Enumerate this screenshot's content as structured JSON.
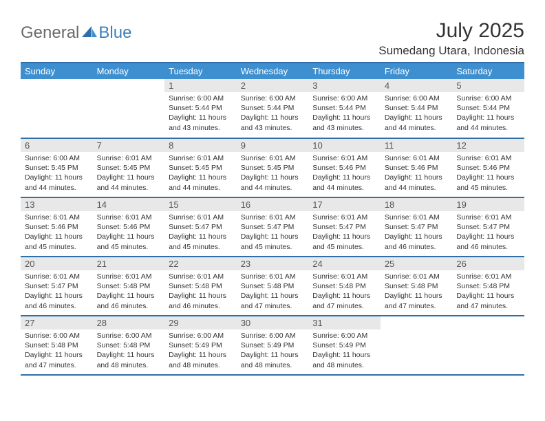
{
  "logo": {
    "text1": "General",
    "text2": "Blue"
  },
  "title": "July 2025",
  "location": "Sumedang Utara, Indonesia",
  "colors": {
    "header_bg": "#3d8fcf",
    "header_text": "#ffffff",
    "divider": "#2f6fa8",
    "daynum_bg": "#e8e8e8",
    "text": "#333333",
    "logo_gray": "#6a6a6a",
    "logo_blue": "#3a7fbf"
  },
  "day_headers": [
    "Sunday",
    "Monday",
    "Tuesday",
    "Wednesday",
    "Thursday",
    "Friday",
    "Saturday"
  ],
  "weeks": [
    [
      {
        "num": "",
        "sunrise": "",
        "sunset": "",
        "daylight": ""
      },
      {
        "num": "",
        "sunrise": "",
        "sunset": "",
        "daylight": ""
      },
      {
        "num": "1",
        "sunrise": "Sunrise: 6:00 AM",
        "sunset": "Sunset: 5:44 PM",
        "daylight": "Daylight: 11 hours and 43 minutes."
      },
      {
        "num": "2",
        "sunrise": "Sunrise: 6:00 AM",
        "sunset": "Sunset: 5:44 PM",
        "daylight": "Daylight: 11 hours and 43 minutes."
      },
      {
        "num": "3",
        "sunrise": "Sunrise: 6:00 AM",
        "sunset": "Sunset: 5:44 PM",
        "daylight": "Daylight: 11 hours and 43 minutes."
      },
      {
        "num": "4",
        "sunrise": "Sunrise: 6:00 AM",
        "sunset": "Sunset: 5:44 PM",
        "daylight": "Daylight: 11 hours and 44 minutes."
      },
      {
        "num": "5",
        "sunrise": "Sunrise: 6:00 AM",
        "sunset": "Sunset: 5:44 PM",
        "daylight": "Daylight: 11 hours and 44 minutes."
      }
    ],
    [
      {
        "num": "6",
        "sunrise": "Sunrise: 6:00 AM",
        "sunset": "Sunset: 5:45 PM",
        "daylight": "Daylight: 11 hours and 44 minutes."
      },
      {
        "num": "7",
        "sunrise": "Sunrise: 6:01 AM",
        "sunset": "Sunset: 5:45 PM",
        "daylight": "Daylight: 11 hours and 44 minutes."
      },
      {
        "num": "8",
        "sunrise": "Sunrise: 6:01 AM",
        "sunset": "Sunset: 5:45 PM",
        "daylight": "Daylight: 11 hours and 44 minutes."
      },
      {
        "num": "9",
        "sunrise": "Sunrise: 6:01 AM",
        "sunset": "Sunset: 5:45 PM",
        "daylight": "Daylight: 11 hours and 44 minutes."
      },
      {
        "num": "10",
        "sunrise": "Sunrise: 6:01 AM",
        "sunset": "Sunset: 5:46 PM",
        "daylight": "Daylight: 11 hours and 44 minutes."
      },
      {
        "num": "11",
        "sunrise": "Sunrise: 6:01 AM",
        "sunset": "Sunset: 5:46 PM",
        "daylight": "Daylight: 11 hours and 44 minutes."
      },
      {
        "num": "12",
        "sunrise": "Sunrise: 6:01 AM",
        "sunset": "Sunset: 5:46 PM",
        "daylight": "Daylight: 11 hours and 45 minutes."
      }
    ],
    [
      {
        "num": "13",
        "sunrise": "Sunrise: 6:01 AM",
        "sunset": "Sunset: 5:46 PM",
        "daylight": "Daylight: 11 hours and 45 minutes."
      },
      {
        "num": "14",
        "sunrise": "Sunrise: 6:01 AM",
        "sunset": "Sunset: 5:46 PM",
        "daylight": "Daylight: 11 hours and 45 minutes."
      },
      {
        "num": "15",
        "sunrise": "Sunrise: 6:01 AM",
        "sunset": "Sunset: 5:47 PM",
        "daylight": "Daylight: 11 hours and 45 minutes."
      },
      {
        "num": "16",
        "sunrise": "Sunrise: 6:01 AM",
        "sunset": "Sunset: 5:47 PM",
        "daylight": "Daylight: 11 hours and 45 minutes."
      },
      {
        "num": "17",
        "sunrise": "Sunrise: 6:01 AM",
        "sunset": "Sunset: 5:47 PM",
        "daylight": "Daylight: 11 hours and 45 minutes."
      },
      {
        "num": "18",
        "sunrise": "Sunrise: 6:01 AM",
        "sunset": "Sunset: 5:47 PM",
        "daylight": "Daylight: 11 hours and 46 minutes."
      },
      {
        "num": "19",
        "sunrise": "Sunrise: 6:01 AM",
        "sunset": "Sunset: 5:47 PM",
        "daylight": "Daylight: 11 hours and 46 minutes."
      }
    ],
    [
      {
        "num": "20",
        "sunrise": "Sunrise: 6:01 AM",
        "sunset": "Sunset: 5:47 PM",
        "daylight": "Daylight: 11 hours and 46 minutes."
      },
      {
        "num": "21",
        "sunrise": "Sunrise: 6:01 AM",
        "sunset": "Sunset: 5:48 PM",
        "daylight": "Daylight: 11 hours and 46 minutes."
      },
      {
        "num": "22",
        "sunrise": "Sunrise: 6:01 AM",
        "sunset": "Sunset: 5:48 PM",
        "daylight": "Daylight: 11 hours and 46 minutes."
      },
      {
        "num": "23",
        "sunrise": "Sunrise: 6:01 AM",
        "sunset": "Sunset: 5:48 PM",
        "daylight": "Daylight: 11 hours and 47 minutes."
      },
      {
        "num": "24",
        "sunrise": "Sunrise: 6:01 AM",
        "sunset": "Sunset: 5:48 PM",
        "daylight": "Daylight: 11 hours and 47 minutes."
      },
      {
        "num": "25",
        "sunrise": "Sunrise: 6:01 AM",
        "sunset": "Sunset: 5:48 PM",
        "daylight": "Daylight: 11 hours and 47 minutes."
      },
      {
        "num": "26",
        "sunrise": "Sunrise: 6:01 AM",
        "sunset": "Sunset: 5:48 PM",
        "daylight": "Daylight: 11 hours and 47 minutes."
      }
    ],
    [
      {
        "num": "27",
        "sunrise": "Sunrise: 6:00 AM",
        "sunset": "Sunset: 5:48 PM",
        "daylight": "Daylight: 11 hours and 47 minutes."
      },
      {
        "num": "28",
        "sunrise": "Sunrise: 6:00 AM",
        "sunset": "Sunset: 5:48 PM",
        "daylight": "Daylight: 11 hours and 48 minutes."
      },
      {
        "num": "29",
        "sunrise": "Sunrise: 6:00 AM",
        "sunset": "Sunset: 5:49 PM",
        "daylight": "Daylight: 11 hours and 48 minutes."
      },
      {
        "num": "30",
        "sunrise": "Sunrise: 6:00 AM",
        "sunset": "Sunset: 5:49 PM",
        "daylight": "Daylight: 11 hours and 48 minutes."
      },
      {
        "num": "31",
        "sunrise": "Sunrise: 6:00 AM",
        "sunset": "Sunset: 5:49 PM",
        "daylight": "Daylight: 11 hours and 48 minutes."
      },
      {
        "num": "",
        "sunrise": "",
        "sunset": "",
        "daylight": ""
      },
      {
        "num": "",
        "sunrise": "",
        "sunset": "",
        "daylight": ""
      }
    ]
  ]
}
